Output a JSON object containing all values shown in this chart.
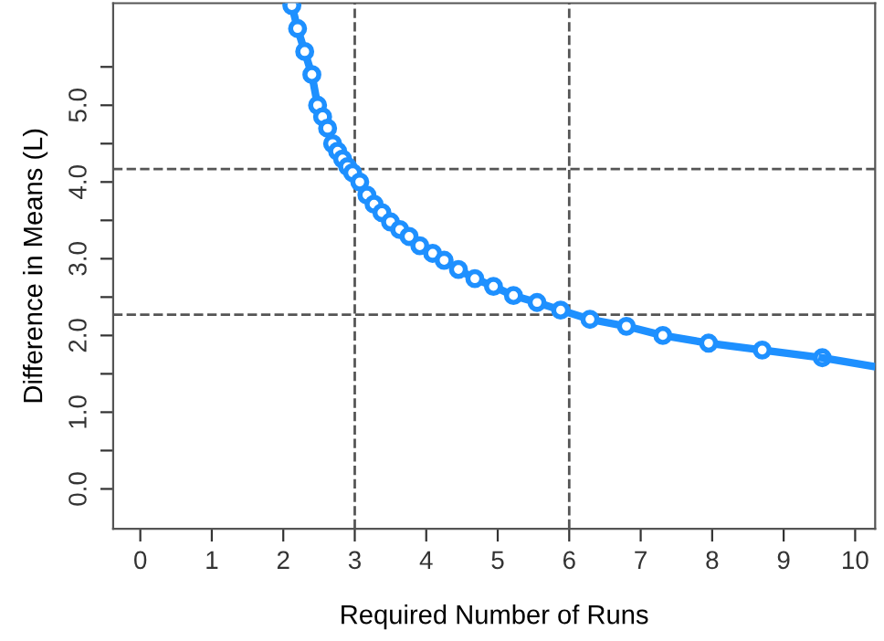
{
  "chart_data": {
    "type": "line",
    "xlabel": "Required Number of Runs",
    "ylabel": "Difference in Means (L)",
    "series": [
      {
        "color": "#1e90ff",
        "marker": "circle",
        "x": [
          2.12,
          2.2,
          2.3,
          2.4,
          2.48,
          2.55,
          2.62,
          2.69,
          2.76,
          2.83,
          2.9,
          2.97,
          3.07,
          3.17,
          3.27,
          3.38,
          3.5,
          3.63,
          3.76,
          3.91,
          4.09,
          4.25,
          4.45,
          4.68,
          4.94,
          5.22,
          5.55,
          5.88,
          6.29,
          6.8,
          7.31,
          7.95,
          8.7,
          9.54
        ],
        "values": [
          6.3,
          6.0,
          5.7,
          5.4,
          5.0,
          4.85,
          4.7,
          4.5,
          4.4,
          4.3,
          4.2,
          4.12,
          4.0,
          3.83,
          3.71,
          3.6,
          3.48,
          3.38,
          3.29,
          3.17,
          3.07,
          2.98,
          2.86,
          2.74,
          2.64,
          2.52,
          2.43,
          2.33,
          2.21,
          2.12,
          2.0,
          1.9,
          1.81,
          1.71
        ]
      },
      {
        "color": "#1e90ff",
        "marker": "none",
        "x": [
          9.54,
          10.23
        ],
        "values": [
          1.71,
          1.6
        ]
      }
    ],
    "xlim": [
      -0.38,
      10.28
    ],
    "ylim": [
      -0.52,
      6.33
    ],
    "xticks": [
      0,
      1,
      2,
      3,
      4,
      5,
      6,
      7,
      8,
      9,
      10
    ],
    "yticks": [
      {
        "value": 0,
        "label": "0.0"
      },
      {
        "value": 0.5,
        "label": null
      },
      {
        "value": 1,
        "label": "1.0"
      },
      {
        "value": 1.5,
        "label": null
      },
      {
        "value": 2,
        "label": "2.0"
      },
      {
        "value": 2.5,
        "label": null
      },
      {
        "value": 3,
        "label": "3.0"
      },
      {
        "value": 3.5,
        "label": null
      },
      {
        "value": 4,
        "label": "4.0"
      },
      {
        "value": 4.5,
        "label": null
      },
      {
        "value": 5,
        "label": "5.0"
      },
      {
        "value": 5.5,
        "label": null
      }
    ],
    "ref_lines": [
      {
        "axis": "x",
        "value": 3,
        "color": "#555555",
        "line_style": "dashed"
      },
      {
        "axis": "x",
        "value": 6,
        "color": "#555555",
        "line_style": "dashed"
      },
      {
        "axis": "y",
        "value": 4.17,
        "color": "#555555",
        "line_style": "dashed"
      },
      {
        "axis": "y",
        "value": 2.27,
        "color": "#555555",
        "line_style": "dashed"
      }
    ],
    "grid": false
  }
}
